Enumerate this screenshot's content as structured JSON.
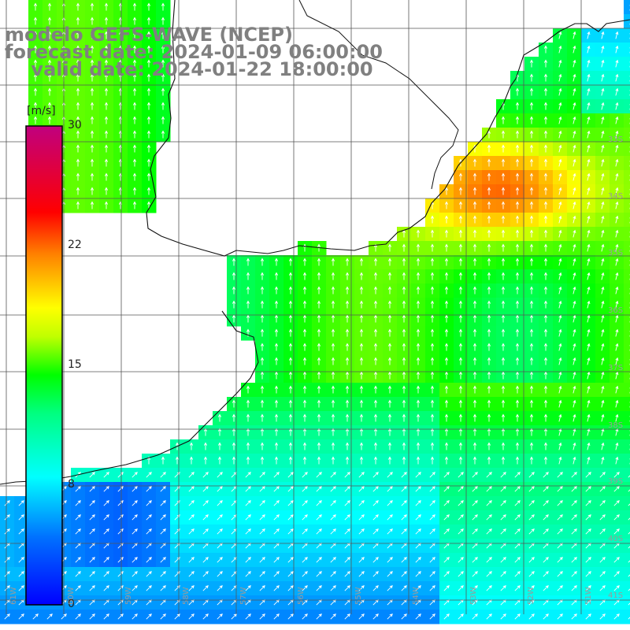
{
  "title": {
    "line1": "modelo GEFS-WAVE (NCEP)",
    "line2": "forecast date: 2024-01-09 06:00:00",
    "line3": "    valid date: 2024-01-22 18:00:00"
  },
  "legend": {
    "unit": "[m/s]",
    "ticks": [
      "30",
      "22",
      "15",
      "8",
      "0"
    ],
    "tick_values": [
      30,
      22,
      15,
      8,
      0
    ],
    "range": [
      0,
      30
    ],
    "colors": [
      "#0000ff",
      "#00a0ff",
      "#00ffff",
      "#00ff66",
      "#00ff00",
      "#80ff00",
      "#ffff00",
      "#ffa000",
      "#ff0000",
      "#c00080"
    ]
  },
  "axes": {
    "lat_labels": [
      "33S",
      "34S",
      "35S",
      "36S",
      "37S",
      "38S",
      "39S",
      "40S",
      "41S"
    ],
    "lon_labels": [
      "61W",
      "60W",
      "59W",
      "58W",
      "57W",
      "56W",
      "55W",
      "54W",
      "53W",
      "52W",
      "51W"
    ]
  },
  "field": {
    "variable": "wind speed",
    "unit": "m/s",
    "arrows": "wind direction vectors",
    "color_scale_max": 30
  }
}
